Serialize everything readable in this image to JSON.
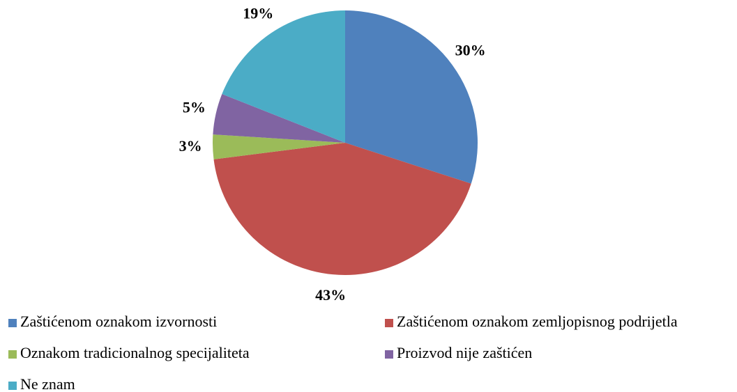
{
  "chart_data": {
    "type": "pie",
    "categories": [
      "Zaštićenom oznakom izvornosti",
      "Zaštićenom oznakom zemljopisnog podrijetla",
      "Oznakom tradicionalnog specijaliteta",
      "Proizvod nije zaštićen",
      "Ne znam"
    ],
    "values": [
      30,
      43,
      3,
      5,
      19
    ],
    "value_labels": [
      "30%",
      "43%",
      "3%",
      "5%",
      "19%"
    ],
    "colors": [
      "#4f81bd",
      "#c0504d",
      "#9bbb59",
      "#8064a2",
      "#4bacc6"
    ],
    "legend": "bottom"
  }
}
